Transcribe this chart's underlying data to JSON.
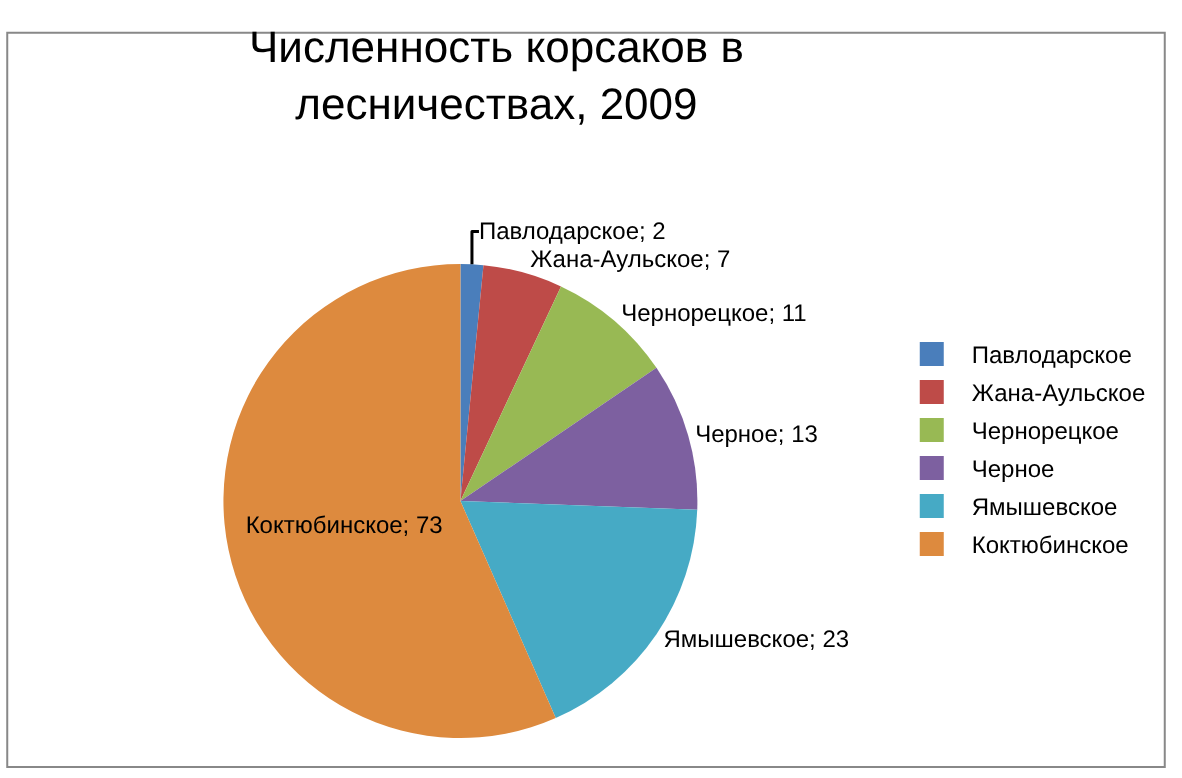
{
  "chart_data": {
    "type": "pie",
    "title": "Численность корсаков в лесничествах, 2009",
    "categories": [
      "Павлодарское",
      "Жана-Аульское",
      "Чернорецкое",
      "Черное",
      "Ямышевское",
      "Коктюбинское"
    ],
    "values": [
      2,
      7,
      11,
      13,
      23,
      73
    ],
    "colors": [
      "#4a7ebb",
      "#be4b48",
      "#98b954",
      "#7d60a0",
      "#46aac5",
      "#dd8a3e"
    ],
    "value_labels": [
      "Павлодарское; 2",
      "Жана-Аульское; 7",
      "Чернорецкое; 11",
      "Черное; 13",
      "Ямышевское; 23",
      "Коктюбинское; 73"
    ],
    "legend": "right"
  }
}
